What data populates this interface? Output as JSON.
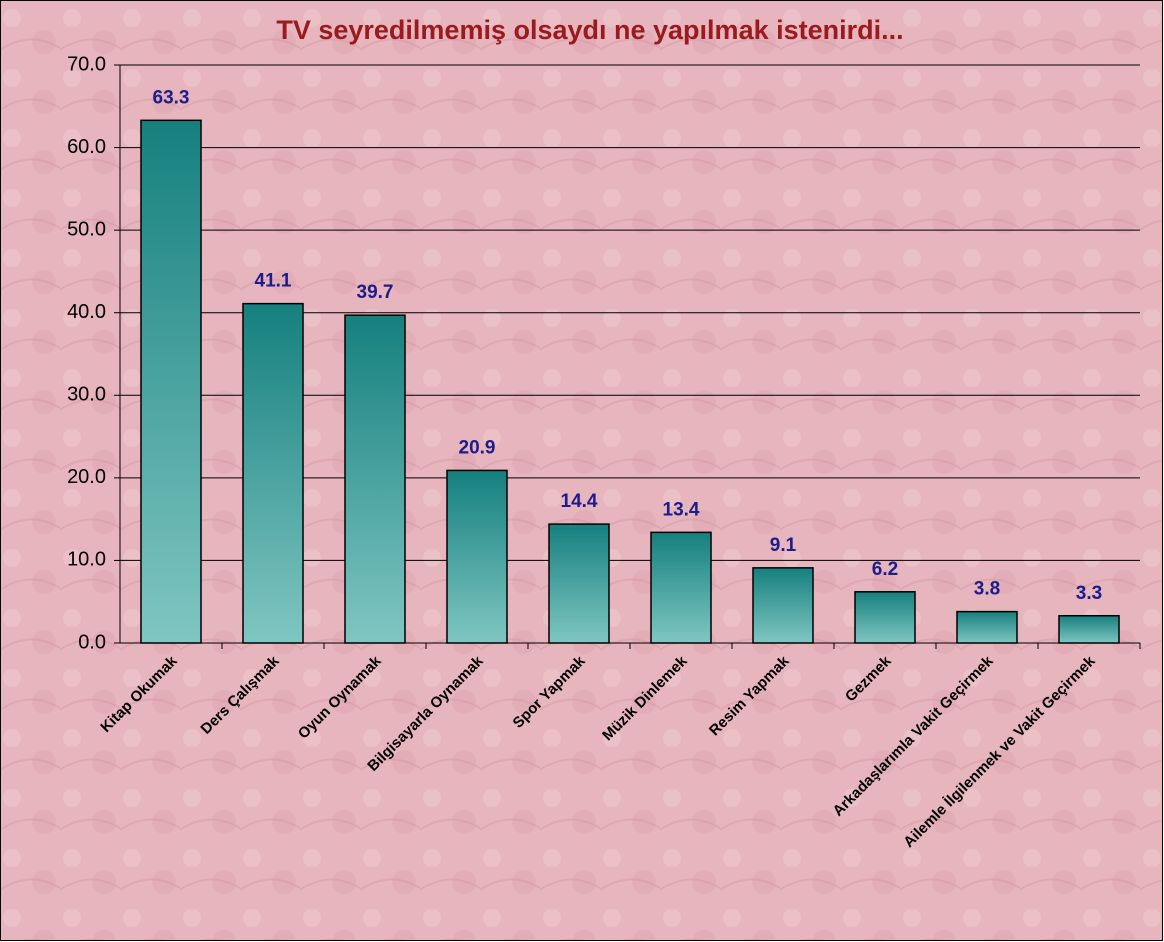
{
  "chart_data": {
    "type": "bar",
    "title": "TV seyredilmemiş olsaydı ne yapılmak istenirdi...",
    "categories": [
      "Kitap Okumak",
      "Ders Çalışmak",
      "Oyun Oynamak",
      "Bilgisayarla Oynamak",
      "Spor Yapmak",
      "Müzik Dinlemek",
      "Resim Yapmak",
      "Gezmek",
      "Arkadaşlarımla Vakit Geçirmek",
      "Ailemle İlgilenmek ve Vakit Geçirmek"
    ],
    "values": [
      63.3,
      41.1,
      39.7,
      20.9,
      14.4,
      13.4,
      9.1,
      6.2,
      3.8,
      3.3
    ],
    "color": "#15807e",
    "ylim": [
      0,
      70
    ],
    "yticks": [
      {
        "value": 0,
        "label": "0.0"
      },
      {
        "value": 10,
        "label": "10.0"
      },
      {
        "value": 20,
        "label": "20.0"
      },
      {
        "value": 30,
        "label": "30.0"
      },
      {
        "value": 40,
        "label": "40.0"
      },
      {
        "value": 50,
        "label": "50.0"
      },
      {
        "value": 60,
        "label": "60.0"
      },
      {
        "value": 70,
        "label": "70.0"
      }
    ],
    "grid": true
  }
}
